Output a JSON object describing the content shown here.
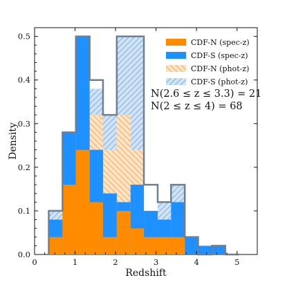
{
  "colors": {
    "cdfn_spec": "#ff8c00",
    "cdfs_spec": "#1e90ff",
    "cdfn_phot": "#f5c58f",
    "cdfs_phot": "#9fc9f2",
    "outline": "#6f7f8f"
  },
  "chart_data": {
    "type": "bar",
    "xlabel": "Redshift",
    "ylabel": "Density",
    "xlim": [
      0,
      5.5
    ],
    "ylim": [
      0,
      0.52
    ],
    "xticks": [
      0,
      1,
      2,
      3,
      4,
      5
    ],
    "yticks": [
      0.0,
      0.1,
      0.2,
      0.3,
      0.4,
      0.5
    ],
    "xtick_labels": [
      "0",
      "1",
      "2",
      "3",
      "4",
      "5"
    ],
    "ytick_labels": [
      "0.0",
      "0.1",
      "0.2",
      "0.3",
      "0.4",
      "0.5"
    ],
    "bin_edges": [
      0.35,
      0.69,
      1.02,
      1.36,
      1.69,
      2.03,
      2.37,
      2.7,
      3.04,
      3.37,
      3.71,
      4.04,
      4.38,
      4.71,
      5.05
    ],
    "series": [
      {
        "name": "CDF-N (spec-z)",
        "values": [
          0.04,
          0.16,
          0.24,
          0.12,
          0.04,
          0.1,
          0.06,
          0.04,
          0.04,
          0.04,
          0.0,
          0.0,
          0.0,
          0.0
        ]
      },
      {
        "name": "CDF-S (spec-z)",
        "values": [
          0.08,
          0.28,
          0.5,
          0.24,
          0.14,
          0.12,
          0.16,
          0.1,
          0.08,
          0.12,
          0.04,
          0.02,
          0.02,
          0.0
        ]
      },
      {
        "name": "CDF-N (phot-z)",
        "values": [
          0.0,
          0.0,
          0.0,
          0.32,
          0.24,
          0.32,
          0.24,
          0.04,
          0.0,
          0.0,
          0.0,
          0.0,
          0.0,
          0.0
        ]
      },
      {
        "name": "CDF-S (phot-z)",
        "values": [
          0.1,
          0.28,
          0.5,
          0.38,
          0.32,
          0.5,
          0.5,
          0.1,
          0.12,
          0.16,
          0.04,
          0.0,
          0.02,
          0.0
        ]
      }
    ],
    "outline_values": [
      0.1,
      0.28,
      0.5,
      0.4,
      0.32,
      0.5,
      0.5,
      0.16,
      0.12,
      0.16,
      0.04,
      0.0,
      0.02,
      0.0
    ],
    "legend_position": "upper-right",
    "annotations": [
      "N(2.6 ≤ z ≤ 3.3) = 21",
      "N(2 ≤ z ≤ 4) = 68"
    ]
  }
}
